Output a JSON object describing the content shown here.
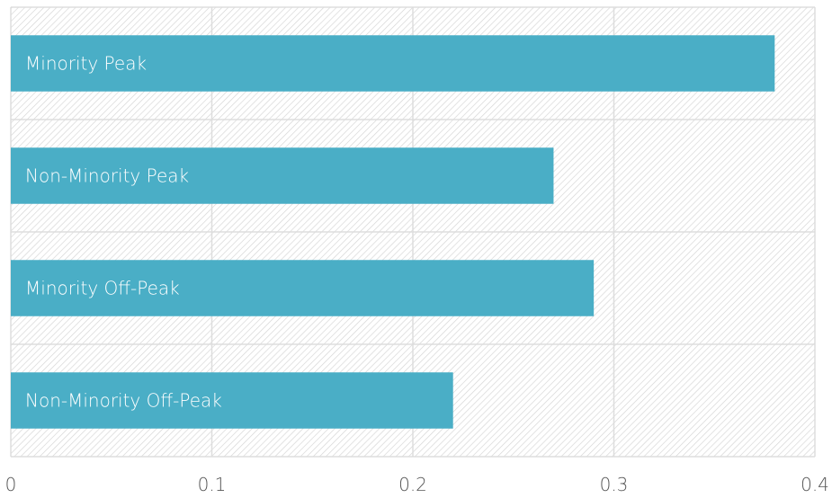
{
  "chart_data": {
    "type": "bar",
    "orientation": "horizontal",
    "categories": [
      "Minority Peak",
      "Non-Minority Peak",
      "Minority Off-Peak",
      "Non-Minority Off-Peak"
    ],
    "values": [
      0.38,
      0.27,
      0.29,
      0.22
    ],
    "xlim": [
      0,
      0.4
    ],
    "xticks": [
      "0",
      "0.1",
      "0.2",
      "0.3",
      "0.4"
    ],
    "xtick_values": [
      0,
      0.1,
      0.2,
      0.3,
      0.4
    ],
    "grid": true,
    "bar_color": "#4aaec6",
    "background_pattern": "diagonal-hatch",
    "hatch_color": "#d9d9d9",
    "grid_color": "#dddddd"
  }
}
